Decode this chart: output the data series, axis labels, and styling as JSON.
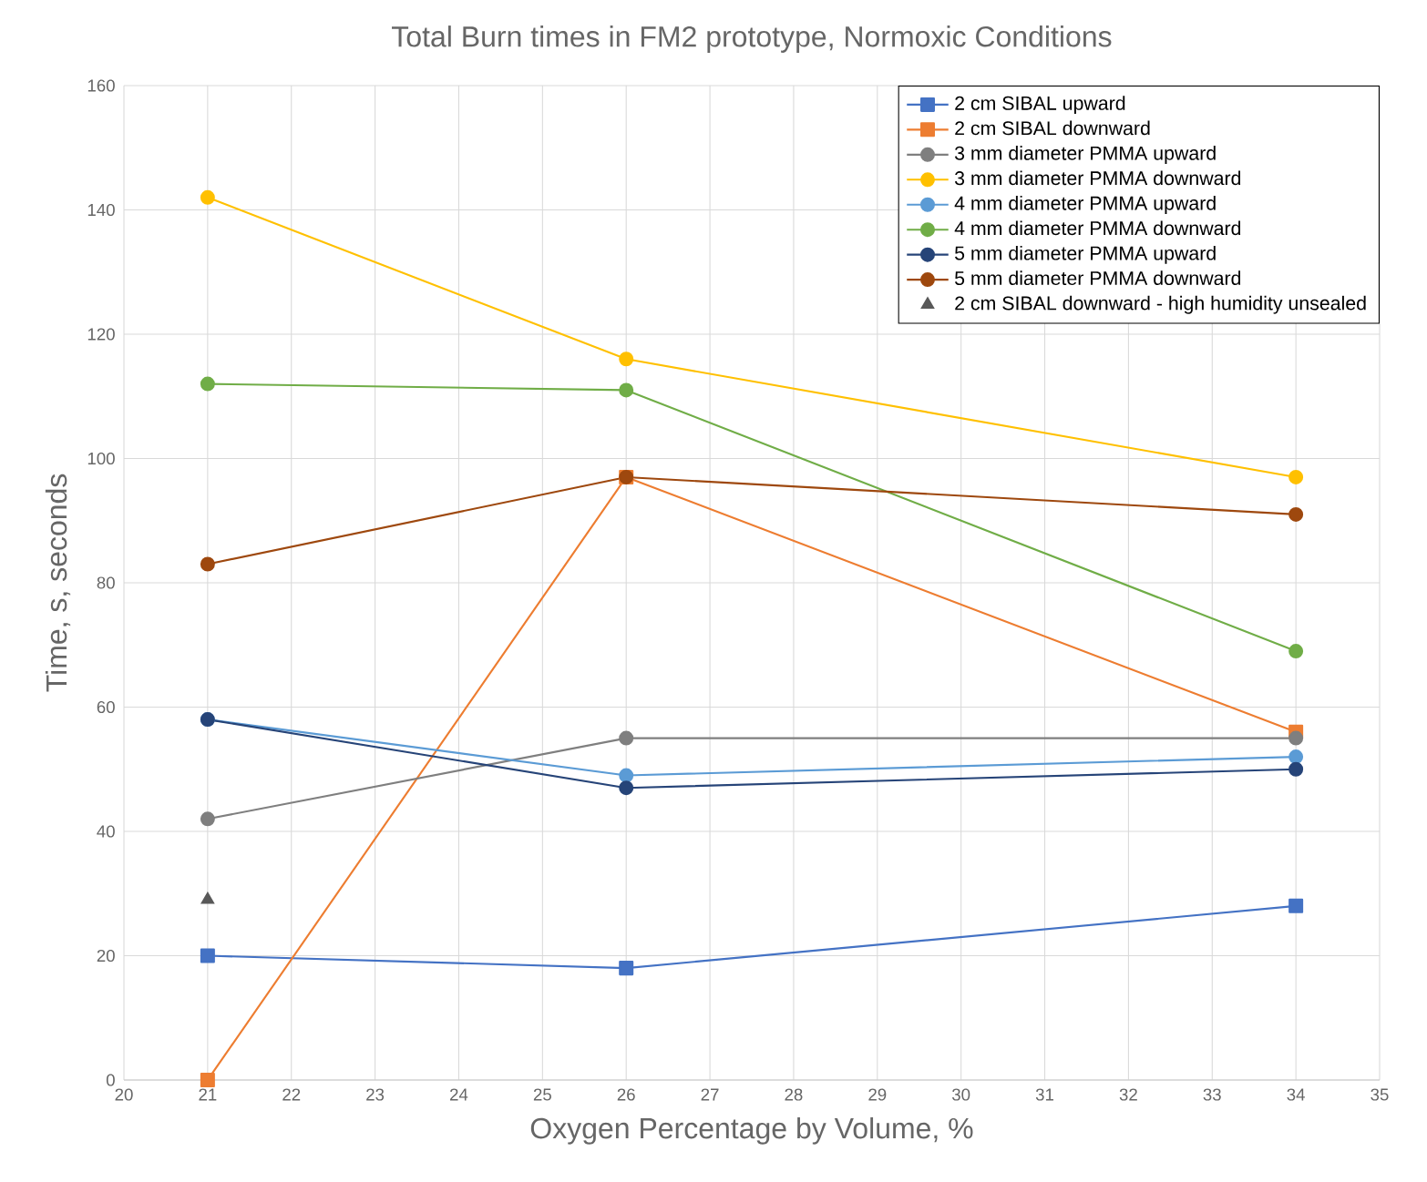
{
  "chart_data": {
    "type": "line",
    "title": "Total Burn times in FM2 prototype, Normoxic Conditions",
    "xlabel": "Oxygen Percentage by Volume, %",
    "ylabel": "Time, s, seconds",
    "x": [
      21,
      26,
      34
    ],
    "xlim": [
      20,
      35
    ],
    "xticks": [
      20,
      21,
      22,
      23,
      24,
      25,
      26,
      27,
      28,
      29,
      30,
      31,
      32,
      33,
      34,
      35
    ],
    "ylim": [
      0,
      160
    ],
    "yticks": [
      0,
      20,
      40,
      60,
      80,
      100,
      120,
      140,
      160
    ],
    "grid": true,
    "legend": "top right",
    "line_style": "solid",
    "series": [
      {
        "name": "2 cm SIBAL upward",
        "color": "#4472c4",
        "marker": "square",
        "values": [
          20,
          18,
          28
        ]
      },
      {
        "name": "2 cm SIBAL downward",
        "color": "#ed7d31",
        "marker": "square",
        "values": [
          0,
          97,
          56
        ]
      },
      {
        "name": "3 mm diameter PMMA upward",
        "color": "#7f7f7f",
        "marker": "circle",
        "values": [
          42,
          55,
          55
        ]
      },
      {
        "name": "3 mm diameter PMMA downward",
        "color": "#ffc000",
        "marker": "circle",
        "values": [
          142,
          116,
          97
        ]
      },
      {
        "name": "4 mm diameter PMMA upward",
        "color": "#5b9bd5",
        "marker": "circle",
        "values": [
          58,
          49,
          52
        ]
      },
      {
        "name": "4 mm diameter PMMA downward",
        "color": "#70ad47",
        "marker": "circle",
        "values": [
          112,
          111,
          69
        ]
      },
      {
        "name": "5 mm diameter PMMA upward",
        "color": "#264478",
        "marker": "circle",
        "values": [
          58,
          47,
          50
        ]
      },
      {
        "name": "5 mm diameter PMMA downward",
        "color": "#9e480e",
        "marker": "circle",
        "values": [
          83,
          97,
          91
        ]
      },
      {
        "name": "2 cm SIBAL downward - high humidity unsealed",
        "type": "scatter",
        "color": "#595959",
        "marker": "triangle",
        "x": [
          21
        ],
        "values": [
          29
        ]
      }
    ]
  }
}
